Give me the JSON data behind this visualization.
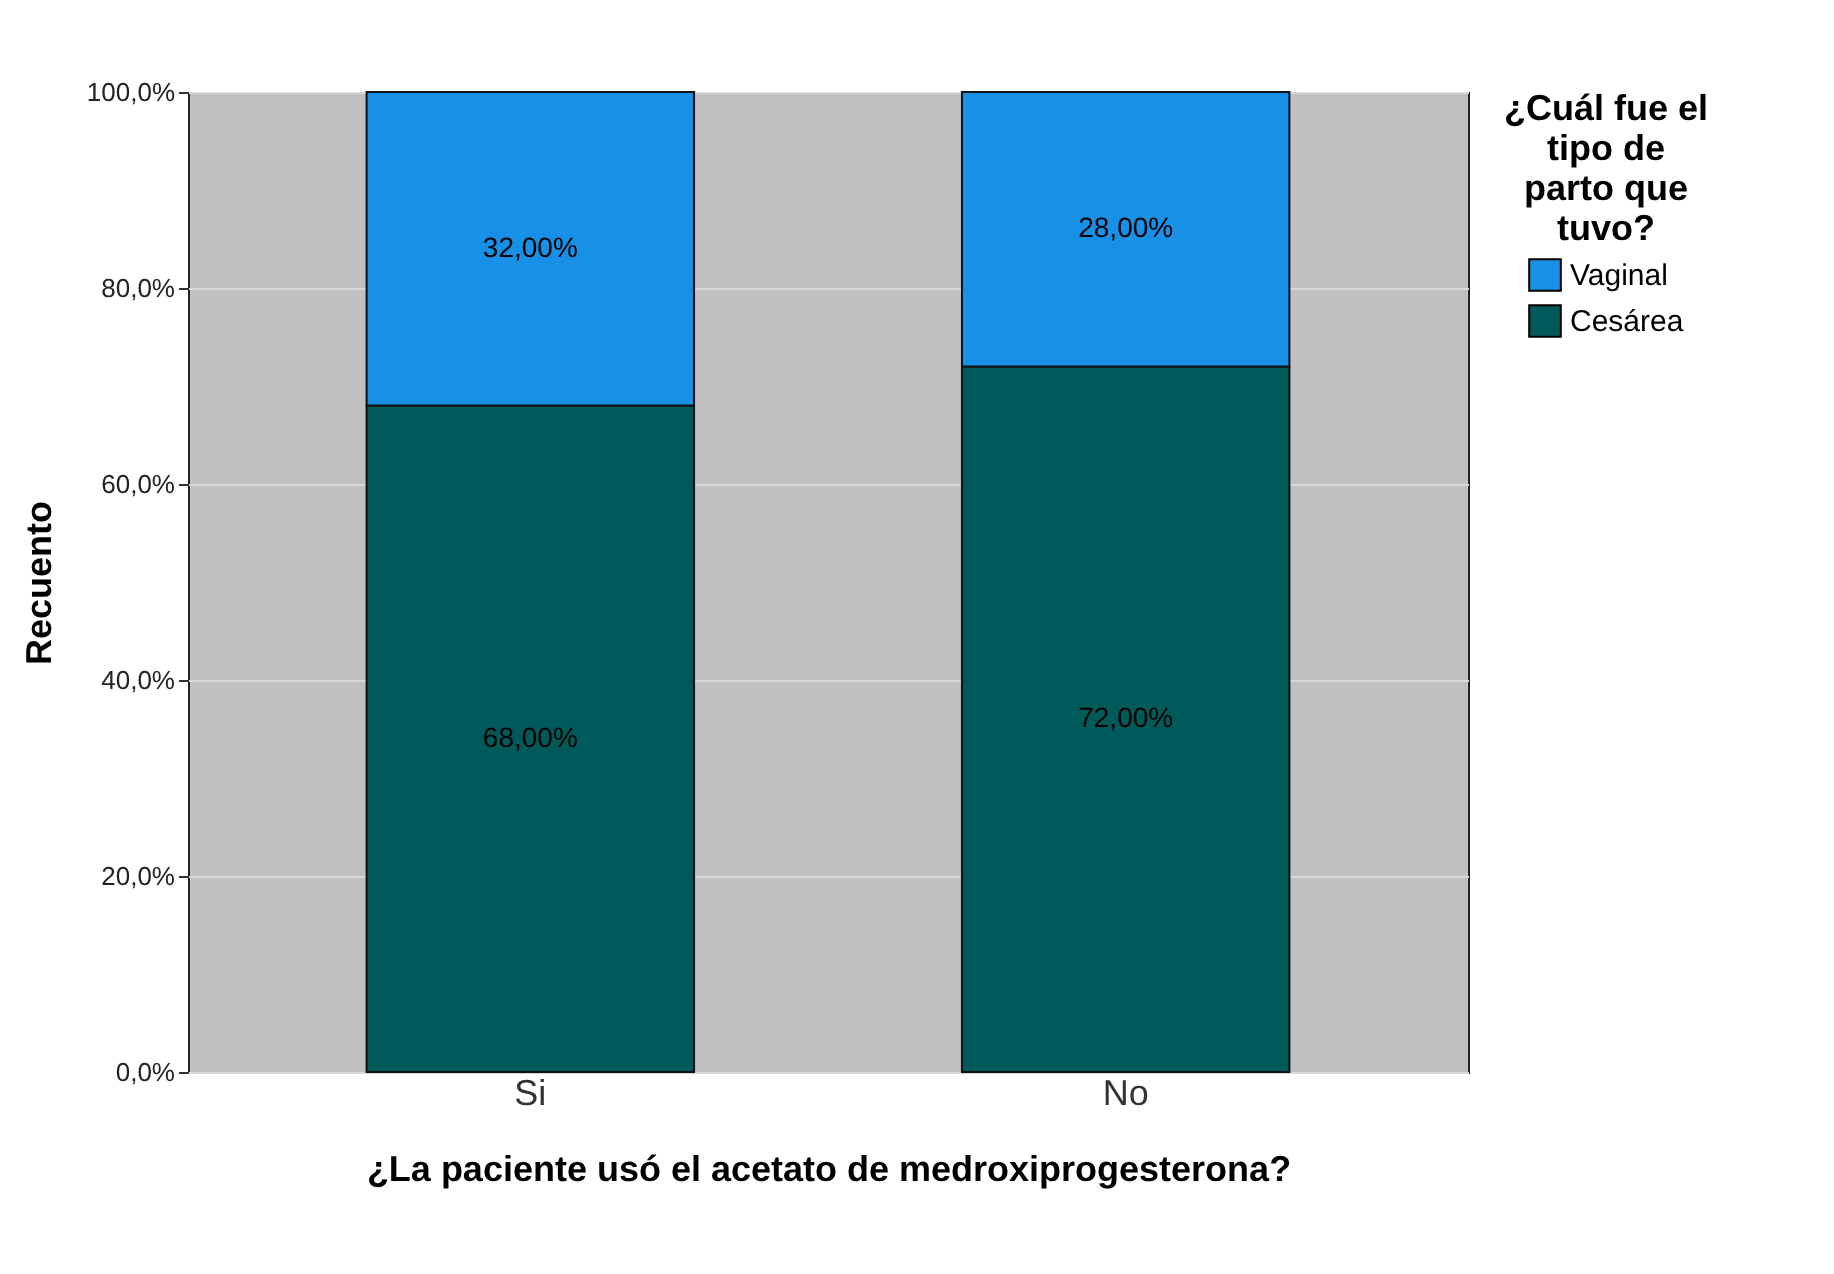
{
  "chart_data": {
    "type": "bar",
    "stacked": true,
    "xlabel": "¿La paciente usó el acetato de medroxiprogesterona?",
    "ylabel": "Recuento",
    "legend_title": "¿Cuál fue el tipo de parto que tuvo?",
    "legend": "top right",
    "grid": "y",
    "categories": [
      "Si",
      "No"
    ],
    "series": [
      {
        "name": "Cesárea",
        "color": "#005a5a",
        "values": [
          68,
          72
        ],
        "value_labels": [
          "68,00%",
          "72,00%"
        ]
      },
      {
        "name": "Vaginal",
        "color": "#1790e6",
        "values": [
          32,
          28
        ],
        "value_labels": [
          "32,00%",
          "28,00%"
        ]
      }
    ],
    "ylim": [
      0,
      100
    ],
    "yticks": [
      {
        "value": 0,
        "label": "0,0%"
      },
      {
        "value": 20,
        "label": "20,0%"
      },
      {
        "value": 40,
        "label": "40,0%"
      },
      {
        "value": 60,
        "label": "60,0%"
      },
      {
        "value": 80,
        "label": "80,0%"
      },
      {
        "value": 100,
        "label": "100,0%"
      }
    ]
  }
}
